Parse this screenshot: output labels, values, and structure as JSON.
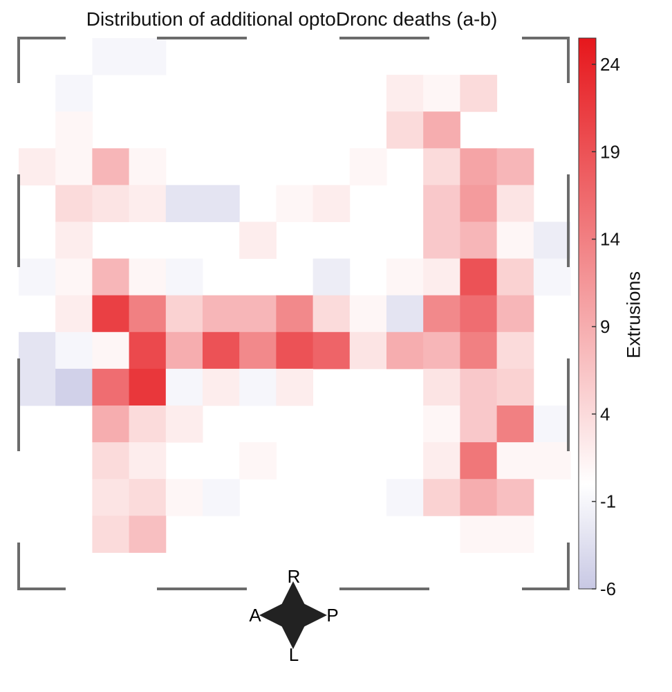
{
  "chart_data": {
    "type": "heatmap",
    "title": "Distribution of additional optoDronc deaths (a-b)",
    "colorbar": {
      "label": "Extrusions",
      "ticks": [
        24,
        19,
        14,
        9,
        4,
        -1,
        -6
      ],
      "range": [
        -6,
        25.5
      ],
      "low_color": "#c8c8e4",
      "mid_color": "#ffffff",
      "high_color": "#e6171c"
    },
    "orientation_labels": {
      "up": "R",
      "down": "L",
      "left": "A",
      "right": "P"
    },
    "grid": {
      "rows": 15,
      "cols": 15
    },
    "values": [
      [
        0,
        0,
        -1,
        -1,
        0,
        0,
        0,
        0,
        0,
        0,
        0,
        0,
        0,
        0,
        0
      ],
      [
        0,
        -1,
        0,
        0,
        0,
        0,
        0,
        0,
        0,
        0,
        2,
        1,
        4,
        0,
        0
      ],
      [
        0,
        1,
        0,
        0,
        0,
        0,
        0,
        0,
        0,
        0,
        4,
        9,
        0,
        0,
        0
      ],
      [
        2,
        1,
        8,
        1,
        0,
        0,
        0,
        0,
        0,
        1,
        0,
        4,
        10,
        8,
        0
      ],
      [
        0,
        4,
        3,
        2,
        -3,
        -3,
        0,
        1,
        2,
        0,
        0,
        6,
        11,
        3,
        0
      ],
      [
        0,
        2,
        0,
        0,
        0,
        0,
        2,
        0,
        0,
        0,
        0,
        6,
        8,
        1,
        -2
      ],
      [
        -1,
        1,
        8,
        1,
        -1,
        0,
        0,
        0,
        -2,
        0,
        1,
        2,
        19,
        5,
        -1
      ],
      [
        0,
        2,
        21,
        14,
        5,
        8,
        8,
        13,
        4,
        1,
        -3,
        13,
        16,
        8,
        0
      ],
      [
        -3,
        -1,
        1,
        20,
        9,
        19,
        13,
        19,
        17,
        3,
        9,
        8,
        14,
        4,
        0
      ],
      [
        -3,
        -5,
        16,
        22,
        -1,
        2,
        -1,
        2,
        0,
        0,
        0,
        3,
        6,
        5,
        0
      ],
      [
        0,
        0,
        9,
        4,
        2,
        0,
        0,
        0,
        0,
        0,
        0,
        1,
        6,
        14,
        -1
      ],
      [
        0,
        0,
        4,
        2,
        0,
        0,
        1,
        0,
        0,
        0,
        0,
        2,
        15,
        1,
        1
      ],
      [
        0,
        0,
        3,
        4,
        1,
        -1,
        0,
        0,
        0,
        0,
        -1,
        5,
        9,
        7,
        0
      ],
      [
        0,
        0,
        4,
        7,
        0,
        0,
        0,
        0,
        0,
        0,
        0,
        0,
        1,
        1,
        0
      ],
      [
        0,
        0,
        0,
        0,
        0,
        0,
        0,
        0,
        0,
        0,
        0,
        0,
        0,
        0,
        0
      ]
    ]
  }
}
